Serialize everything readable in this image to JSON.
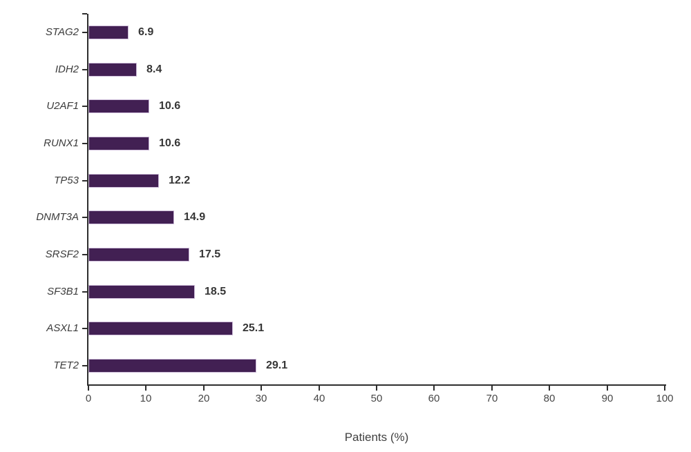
{
  "chart_data": {
    "type": "bar",
    "orientation": "horizontal",
    "title": "",
    "categories": [
      "STAG2",
      "IDH2",
      "U2AF1",
      "RUNX1",
      "TP53",
      "DNMT3A",
      "SRSF2",
      "SF3B1",
      "ASXL1",
      "TET2"
    ],
    "values": [
      6.9,
      8.4,
      10.6,
      10.6,
      12.2,
      14.9,
      17.5,
      18.5,
      25.1,
      29.1
    ],
    "value_labels": [
      "6.9",
      "8.4",
      "10.6",
      "10.6",
      "12.2",
      "14.9",
      "17.5",
      "18.5",
      "25.1",
      "29.1"
    ],
    "xlabel": "Patients (%)",
    "ylabel": "",
    "xlim": [
      0,
      100
    ],
    "x_ticks": [
      "0",
      "10",
      "20",
      "30",
      "40",
      "50",
      "60",
      "70",
      "80",
      "90",
      "100"
    ],
    "grid": false,
    "legend": null,
    "bar_color": "#422053",
    "bar_border_color": "#cdbcd9",
    "axis_color": "#2d2d2d",
    "category_label_color": "#3b3b3b",
    "value_label_color": "#363636",
    "tick_label_color": "#454545",
    "axis_title_color": "#3f3f3f"
  }
}
